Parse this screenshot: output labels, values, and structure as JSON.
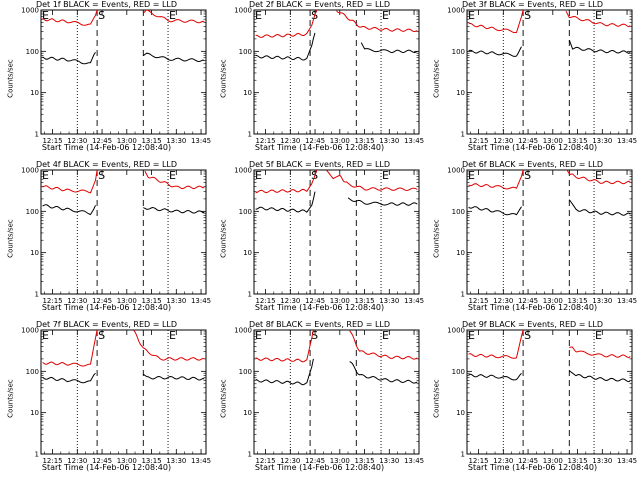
{
  "ylabel": "Counts/sec",
  "xlabel": "Start Time (14-Feb-06 12:08:40)",
  "x_ticks": [
    "12:15",
    "12:30",
    "12:45",
    "13:00",
    "13:15",
    "13:30",
    "13:45"
  ],
  "y_ticks": [
    "1",
    "10",
    "100",
    "1000"
  ],
  "markers": [
    "E",
    "S",
    "E"
  ],
  "colors": {
    "events": "#000000",
    "lld": "#e00000"
  },
  "chart_data": [
    {
      "type": "line",
      "title": "Det 1f BLACK = Events, RED = LLD",
      "ylim": [
        1,
        1000
      ],
      "scale": "log",
      "series": [
        {
          "name": "Events",
          "segments": [
            [
              [
                "12:09",
                70
              ],
              [
                "12:25",
                62
              ],
              [
                "12:38",
                50
              ],
              [
                "12:41",
                95
              ]
            ],
            [
              [
                "13:10",
                75
              ],
              [
                "13:12",
                85
              ],
              [
                "13:25",
                65
              ],
              [
                "13:47",
                60
              ]
            ]
          ]
        },
        {
          "name": "LLD",
          "segments": [
            [
              [
                "12:09",
                600
              ],
              [
                "12:25",
                520
              ],
              [
                "12:38",
                430
              ],
              [
                "12:41",
                700
              ],
              [
                "12:42",
                1000
              ]
            ],
            [
              [
                "13:10",
                800
              ],
              [
                "13:12",
                950
              ],
              [
                "13:25",
                560
              ],
              [
                "13:47",
                520
              ]
            ]
          ]
        }
      ]
    },
    {
      "type": "line",
      "title": "Det 2f BLACK = Events, RED = LLD",
      "ylim": [
        1,
        1000
      ],
      "scale": "log",
      "series": [
        {
          "name": "Events",
          "segments": [
            [
              [
                "12:09",
                75
              ],
              [
                "12:25",
                70
              ],
              [
                "12:40",
                65
              ],
              [
                "12:43",
                130
              ],
              [
                "12:45",
                280
              ]
            ],
            [
              [
                "13:13",
                160
              ],
              [
                "13:15",
                110
              ],
              [
                "13:30",
                100
              ],
              [
                "13:47",
                100
              ]
            ]
          ]
        },
        {
          "name": "LLD",
          "segments": [
            [
              [
                "12:09",
                230
              ],
              [
                "12:25",
                240
              ],
              [
                "12:40",
                260
              ],
              [
                "12:43",
                400
              ],
              [
                "12:46",
                1000
              ]
            ],
            [
              [
                "12:58",
                1000
              ],
              [
                "13:06",
                600
              ],
              [
                "13:13",
                380
              ],
              [
                "13:30",
                330
              ],
              [
                "13:47",
                320
              ]
            ]
          ]
        }
      ]
    },
    {
      "type": "line",
      "title": "Det 3f BLACK = Events, RED = LLD",
      "ylim": [
        1,
        1000
      ],
      "scale": "log",
      "series": [
        {
          "name": "Events",
          "segments": [
            [
              [
                "12:09",
                100
              ],
              [
                "12:25",
                90
              ],
              [
                "12:38",
                80
              ],
              [
                "12:41",
                130
              ]
            ],
            [
              [
                "13:10",
                200
              ],
              [
                "13:12",
                120
              ],
              [
                "13:30",
                100
              ],
              [
                "13:47",
                95
              ]
            ]
          ]
        },
        {
          "name": "LLD",
          "segments": [
            [
              [
                "12:09",
                450
              ],
              [
                "12:25",
                350
              ],
              [
                "12:38",
                300
              ],
              [
                "12:41",
                700
              ],
              [
                "12:42",
                1000
              ]
            ],
            [
              [
                "13:08",
                1000
              ],
              [
                "13:10",
                700
              ],
              [
                "13:30",
                450
              ],
              [
                "13:47",
                420
              ]
            ]
          ]
        }
      ]
    },
    {
      "type": "line",
      "title": "Det 4f BLACK = Events, RED = LLD",
      "ylim": [
        1,
        1000
      ],
      "scale": "log",
      "series": [
        {
          "name": "Events",
          "segments": [
            [
              [
                "12:09",
                140
              ],
              [
                "12:25",
                110
              ],
              [
                "12:38",
                90
              ],
              [
                "12:41",
                140
              ]
            ],
            [
              [
                "13:10",
                130
              ],
              [
                "13:12",
                120
              ],
              [
                "13:30",
                100
              ],
              [
                "13:47",
                95
              ]
            ]
          ]
        },
        {
          "name": "LLD",
          "segments": [
            [
              [
                "12:09",
                400
              ],
              [
                "12:25",
                320
              ],
              [
                "12:38",
                300
              ],
              [
                "12:41",
                600
              ],
              [
                "12:42",
                1000
              ]
            ],
            [
              [
                "13:11",
                1000
              ],
              [
                "13:13",
                700
              ],
              [
                "13:30",
                380
              ],
              [
                "13:47",
                380
              ]
            ]
          ]
        }
      ]
    },
    {
      "type": "line",
      "title": "Det 5f BLACK = Events, RED = LLD",
      "ylim": [
        1,
        1000
      ],
      "scale": "log",
      "series": [
        {
          "name": "Events",
          "segments": [
            [
              [
                "12:09",
                120
              ],
              [
                "12:25",
                110
              ],
              [
                "12:40",
                100
              ],
              [
                "12:43",
                150
              ],
              [
                "12:45",
                300
              ]
            ],
            [
              [
                "13:05",
                200
              ],
              [
                "13:15",
                160
              ],
              [
                "13:30",
                150
              ],
              [
                "13:47",
                150
              ]
            ]
          ]
        },
        {
          "name": "LLD",
          "segments": [
            [
              [
                "12:09",
                300
              ],
              [
                "12:25",
                310
              ],
              [
                "12:40",
                320
              ],
              [
                "12:43",
                500
              ],
              [
                "12:46",
                1000
              ]
            ],
            [
              [
                "12:52",
                1000
              ],
              [
                "12:56",
                600
              ],
              [
                "13:00",
                700
              ],
              [
                "13:05",
                450
              ],
              [
                "13:15",
                350
              ],
              [
                "13:47",
                340
              ]
            ]
          ]
        }
      ]
    },
    {
      "type": "line",
      "title": "Det 6f BLACK = Events, RED = LLD",
      "ylim": [
        1,
        1000
      ],
      "scale": "log",
      "series": [
        {
          "name": "Events",
          "segments": [
            [
              [
                "12:09",
                130
              ],
              [
                "12:25",
                100
              ],
              [
                "12:38",
                80
              ],
              [
                "12:41",
                130
              ]
            ],
            [
              [
                "13:10",
                180
              ],
              [
                "13:14",
                110
              ],
              [
                "13:30",
                90
              ],
              [
                "13:47",
                85
              ]
            ]
          ]
        },
        {
          "name": "LLD",
          "segments": [
            [
              [
                "12:09",
                450
              ],
              [
                "12:25",
                400
              ],
              [
                "12:38",
                350
              ],
              [
                "12:41",
                700
              ],
              [
                "12:42",
                1000
              ]
            ],
            [
              [
                "13:08",
                1000
              ],
              [
                "13:13",
                700
              ],
              [
                "13:30",
                500
              ],
              [
                "13:47",
                500
              ]
            ]
          ]
        }
      ]
    },
    {
      "type": "line",
      "title": "Det 7f BLACK = Events, RED = LLD",
      "ylim": [
        1,
        1000
      ],
      "scale": "log",
      "series": [
        {
          "name": "Events",
          "segments": [
            [
              [
                "12:09",
                70
              ],
              [
                "12:25",
                60
              ],
              [
                "12:38",
                55
              ],
              [
                "12:41",
                90
              ]
            ],
            [
              [
                "13:10",
                80
              ],
              [
                "13:12",
                70
              ],
              [
                "13:30",
                70
              ],
              [
                "13:47",
                65
              ]
            ]
          ]
        },
        {
          "name": "LLD",
          "segments": [
            [
              [
                "12:09",
                160
              ],
              [
                "12:25",
                150
              ],
              [
                "12:38",
                140
              ],
              [
                "12:41",
                600
              ],
              [
                "12:42",
                1000
              ]
            ],
            [
              [
                "13:04",
                1000
              ],
              [
                "13:10",
                350
              ],
              [
                "13:20",
                200
              ],
              [
                "13:47",
                200
              ]
            ]
          ]
        }
      ]
    },
    {
      "type": "line",
      "title": "Det 8f BLACK = Events, RED = LLD",
      "ylim": [
        1,
        1000
      ],
      "scale": "log",
      "series": [
        {
          "name": "Events",
          "segments": [
            [
              [
                "12:09",
                60
              ],
              [
                "12:25",
                55
              ],
              [
                "12:40",
                50
              ],
              [
                "12:43",
                120
              ],
              [
                "12:44",
                200
              ]
            ],
            [
              [
                "13:06",
                180
              ],
              [
                "13:12",
                80
              ],
              [
                "13:30",
                60
              ],
              [
                "13:47",
                55
              ]
            ]
          ]
        },
        {
          "name": "LLD",
          "segments": [
            [
              [
                "12:09",
                200
              ],
              [
                "12:25",
                190
              ],
              [
                "12:40",
                180
              ],
              [
                "12:43",
                600
              ],
              [
                "12:44",
                1000
              ]
            ],
            [
              [
                "13:06",
                1000
              ],
              [
                "13:12",
                300
              ],
              [
                "13:30",
                220
              ],
              [
                "13:47",
                210
              ]
            ]
          ]
        }
      ]
    },
    {
      "type": "line",
      "title": "Det 9f BLACK = Events, RED = LLD",
      "ylim": [
        1,
        1000
      ],
      "scale": "log",
      "series": [
        {
          "name": "Events",
          "segments": [
            [
              [
                "12:09",
                80
              ],
              [
                "12:25",
                75
              ],
              [
                "12:38",
                65
              ],
              [
                "12:41",
                90
              ]
            ],
            [
              [
                "13:10",
                110
              ],
              [
                "13:14",
                80
              ],
              [
                "13:30",
                65
              ],
              [
                "13:47",
                60
              ]
            ]
          ]
        },
        {
          "name": "LLD",
          "segments": [
            [
              [
                "12:09",
                250
              ],
              [
                "12:25",
                230
              ],
              [
                "12:38",
                220
              ],
              [
                "12:41",
                700
              ],
              [
                "12:42",
                1000
              ]
            ],
            [
              [
                "13:10",
                400
              ],
              [
                "13:15",
                300
              ],
              [
                "13:30",
                240
              ],
              [
                "13:47",
                230
              ]
            ]
          ]
        }
      ]
    }
  ]
}
